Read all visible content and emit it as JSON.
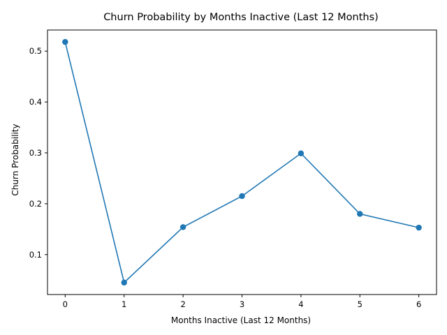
{
  "chart_data": {
    "type": "line",
    "title": "Churn Probability by Months Inactive (Last 12 Months)",
    "xlabel": "Months Inactive (Last 12 Months)",
    "ylabel": "Churn Probability",
    "x": [
      0,
      1,
      2,
      3,
      4,
      5,
      6
    ],
    "series": [
      {
        "values": [
          0.518,
          0.045,
          0.154,
          0.215,
          0.299,
          0.18,
          0.153
        ],
        "color": "#1f77b4",
        "marker": "circle"
      }
    ],
    "xlim": [
      -0.3,
      6.3
    ],
    "ylim": [
      0.0215,
      0.5415
    ],
    "xticks": [
      "0",
      "1",
      "2",
      "3",
      "4",
      "5",
      "6"
    ],
    "yticks": [
      "0.1",
      "0.2",
      "0.3",
      "0.4",
      "0.5"
    ],
    "grid": false,
    "legend": "none"
  }
}
